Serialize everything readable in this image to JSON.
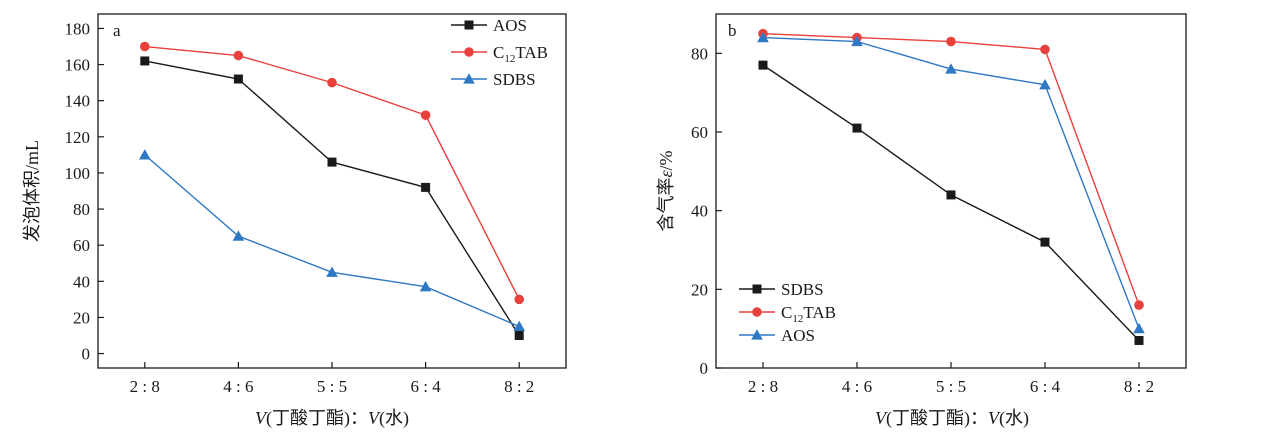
{
  "chart_data": [
    {
      "type": "line",
      "panel_label": "a",
      "categories": [
        "2 : 8",
        "4 : 6",
        "5 : 5",
        "6 : 4",
        "8 : 2"
      ],
      "series": [
        {
          "name": "AOS",
          "name_main": "AOS",
          "name_sub": "",
          "name_rest": "",
          "values": [
            162,
            152,
            106,
            92,
            10
          ],
          "color": "#1a1a1a",
          "marker": "square"
        },
        {
          "name": "C12TAB",
          "name_main": "C",
          "name_sub": "12",
          "name_rest": "TAB",
          "values": [
            170,
            165,
            150,
            132,
            30
          ],
          "color": "#e8403c",
          "marker": "circle"
        },
        {
          "name": "SDBS",
          "name_main": "SDBS",
          "name_sub": "",
          "name_rest": "",
          "values": [
            110,
            65,
            45,
            37,
            15
          ],
          "color": "#2f78c4",
          "marker": "triangle"
        }
      ],
      "xlabel": "V(丁酸丁酯)：V(水)",
      "xlabel_parts": {
        "v1": "V",
        "t1": "(丁酸丁酯)：",
        "v2": "V",
        "t2": "(水)"
      },
      "ylabel": "发泡体积/mL",
      "ylim": [
        -8,
        188
      ],
      "yticks": [
        0,
        20,
        40,
        60,
        80,
        100,
        120,
        140,
        160,
        180
      ],
      "grid": false,
      "legend_placement": "top-right"
    },
    {
      "type": "line",
      "panel_label": "b",
      "categories": [
        "2 : 8",
        "4 : 6",
        "5 : 5",
        "6 : 4",
        "8 : 2"
      ],
      "series": [
        {
          "name": "SDBS",
          "name_main": "SDBS",
          "name_sub": "",
          "name_rest": "",
          "values": [
            77,
            61,
            44,
            32,
            7
          ],
          "color": "#1a1a1a",
          "marker": "square"
        },
        {
          "name": "C12TAB",
          "name_main": "C",
          "name_sub": "12",
          "name_rest": "TAB",
          "values": [
            85,
            84,
            83,
            81,
            16
          ],
          "color": "#e8403c",
          "marker": "circle"
        },
        {
          "name": "AOS",
          "name_main": "AOS",
          "name_sub": "",
          "name_rest": "",
          "values": [
            84,
            83,
            76,
            72,
            10
          ],
          "color": "#2f78c4",
          "marker": "triangle"
        }
      ],
      "xlabel": "V(丁酸丁酯)：V(水)",
      "xlabel_parts": {
        "v1": "V",
        "t1": "(丁酸丁酯)：",
        "v2": "V",
        "t2": "(水)"
      },
      "ylabel": "含气率ε/%",
      "ylabel_parts": {
        "pre": "含气率",
        "var": "ε",
        "post": "/%"
      },
      "ylim": [
        0,
        90
      ],
      "yticks": [
        0,
        20,
        40,
        60,
        80
      ],
      "grid": false,
      "legend_placement": "bottom-left"
    }
  ]
}
